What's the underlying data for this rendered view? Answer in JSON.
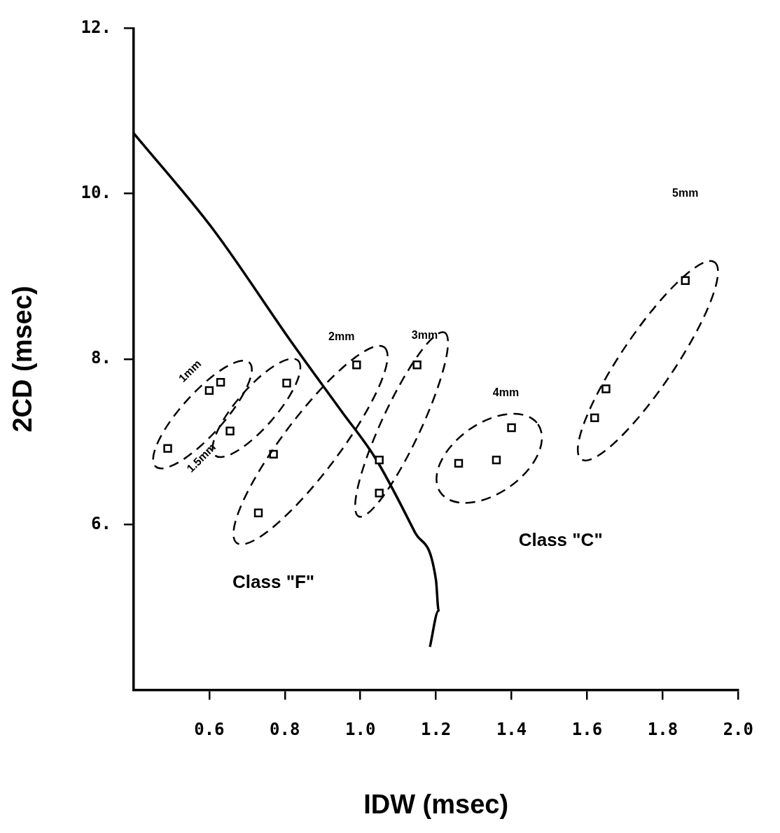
{
  "chart_data": {
    "type": "scatter",
    "xlabel": "IDW (msec)",
    "ylabel": "2CD (msec)",
    "xlim": [
      0.4,
      2.0
    ],
    "xticks": [
      0.6,
      0.8,
      {
        "value": 1,
        "label": "1.0"
      },
      1.2,
      1.4,
      1.6,
      1.8,
      {
        "value": 2,
        "label": "2.0"
      }
    ],
    "ylim": [
      4,
      12
    ],
    "yticks": [
      {
        "value": 6,
        "label": "6."
      },
      {
        "value": 8,
        "label": "8."
      },
      {
        "value": 10,
        "label": "10."
      },
      {
        "value": 12,
        "label": "12."
      }
    ],
    "grid": false,
    "legend": false,
    "series": [
      {
        "marker": "square",
        "color": "#000000",
        "x": [
          0.49,
          0.6,
          0.63,
          0.655,
          0.805,
          0.77,
          0.73,
          0.99,
          1.15,
          1.05,
          1.05,
          1.26,
          1.36,
          1.4,
          1.62,
          1.65,
          1.86
        ],
        "values": [
          6.92,
          7.62,
          7.72,
          7.13,
          7.71,
          6.85,
          6.14,
          7.93,
          7.93,
          6.78,
          6.38,
          6.74,
          6.78,
          7.17,
          7.29,
          7.64,
          8.95
        ]
      },
      {
        "type": "line",
        "color": "#000000",
        "line_style": "solid",
        "x": [
          0.4,
          0.61,
          0.82,
          0.95,
          1.04,
          1.145,
          1.2,
          1.207,
          1.184
        ],
        "values": [
          10.73,
          9.57,
          8.19,
          7.37,
          6.8,
          5.9,
          5.33,
          4.96,
          4.52
        ]
      }
    ],
    "annotations": [
      "1mm",
      "1.5mm",
      "2mm",
      "3mm",
      "4mm",
      "5mm",
      "Class \"F\"",
      "Class \"C\""
    ]
  }
}
